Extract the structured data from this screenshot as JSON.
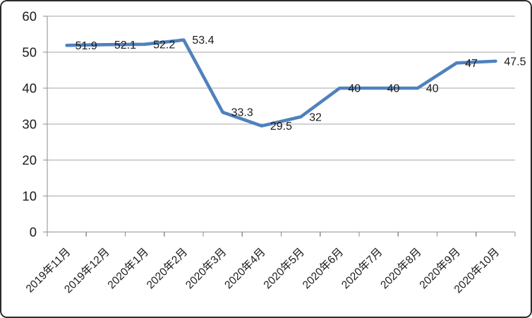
{
  "chart_data": {
    "type": "line",
    "title": "",
    "xlabel": "",
    "ylabel": "",
    "categories": [
      "2019年11月",
      "2019年12月",
      "2020年1月",
      "2020年2月",
      "2020年3月",
      "2020年4月",
      "2020年5月",
      "2020年6月",
      "2020年7月",
      "2020年8月",
      "2020年9月",
      "2020年10月"
    ],
    "values": [
      51.9,
      52.1,
      52.2,
      53.4,
      33.3,
      29.5,
      32,
      40,
      40,
      40,
      47,
      47.5
    ],
    "data_labels": [
      "51.9",
      "52.1",
      "52.2",
      "53.4",
      "33.3",
      "29.5",
      "32",
      "40",
      "40",
      "40",
      "47",
      "47.5"
    ],
    "yticks": [
      0,
      10,
      20,
      30,
      40,
      50,
      60
    ],
    "ylim": [
      0,
      60
    ],
    "grid": true,
    "legend": "none",
    "colors": {
      "series_line": "#4F81BD",
      "gridline": "#A6A6A6",
      "axis": "#8C8C8C",
      "text": "#1A1A1A",
      "frame_border": "#2B2B2B",
      "background": "#FFFFFF"
    }
  }
}
